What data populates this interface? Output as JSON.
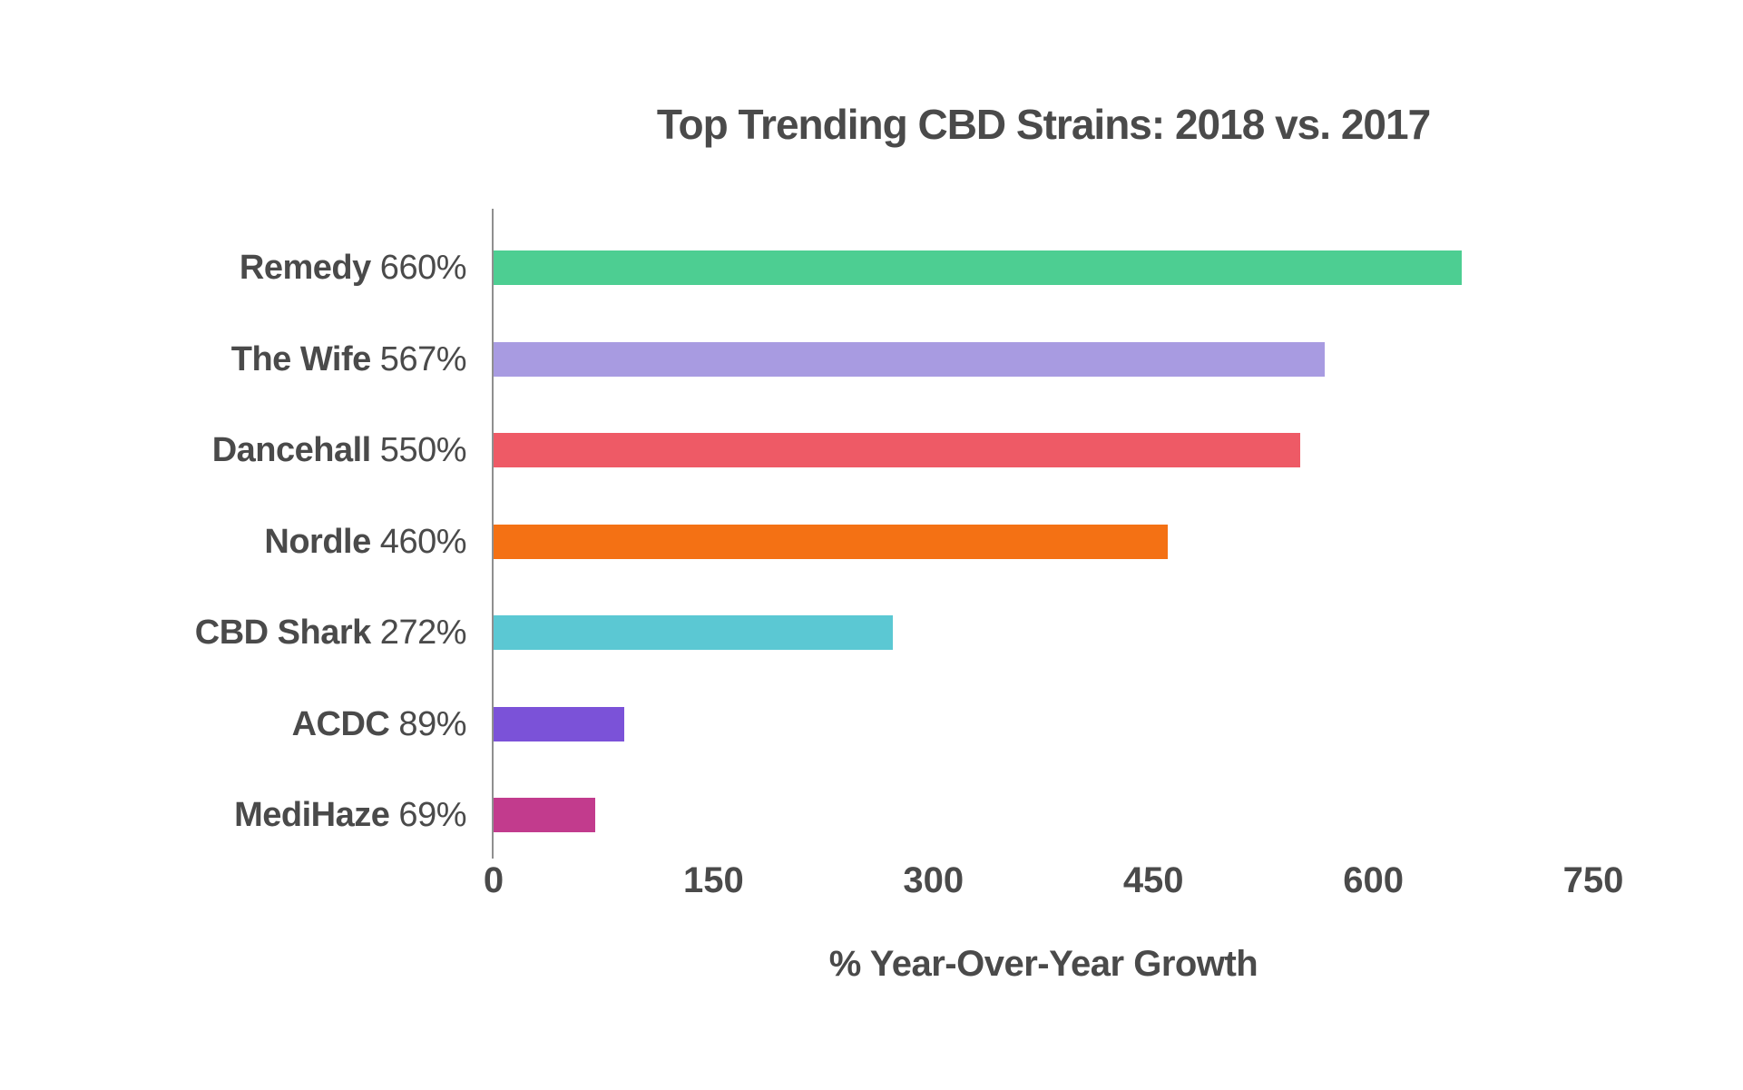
{
  "chart_data": {
    "type": "bar",
    "orientation": "horizontal",
    "title": "Top Trending CBD Strains: 2018 vs. 2017",
    "xlabel": "% Year-Over-Year Growth",
    "categories": [
      "Remedy",
      "The Wife",
      "Dancehall",
      "Nordle",
      "CBD Shark",
      "ACDC",
      "MediHaze"
    ],
    "values": [
      660,
      567,
      550,
      460,
      272,
      89,
      69
    ],
    "value_labels": [
      "660%",
      "567%",
      "550%",
      "460%",
      "272%",
      "89%",
      "69%"
    ],
    "bar_colors": [
      "#4dce92",
      "#a89be1",
      "#ee5a66",
      "#f47114",
      "#5bc8d3",
      "#7b52d8",
      "#c23b8d"
    ],
    "xlim": [
      0,
      750
    ],
    "xticks": [
      0,
      150,
      300,
      450,
      600,
      750
    ],
    "grid": false,
    "legend": "none"
  },
  "colors": {
    "text": "#4a4a4a",
    "axis_line": "#8f8f8f",
    "background": "#ffffff"
  }
}
